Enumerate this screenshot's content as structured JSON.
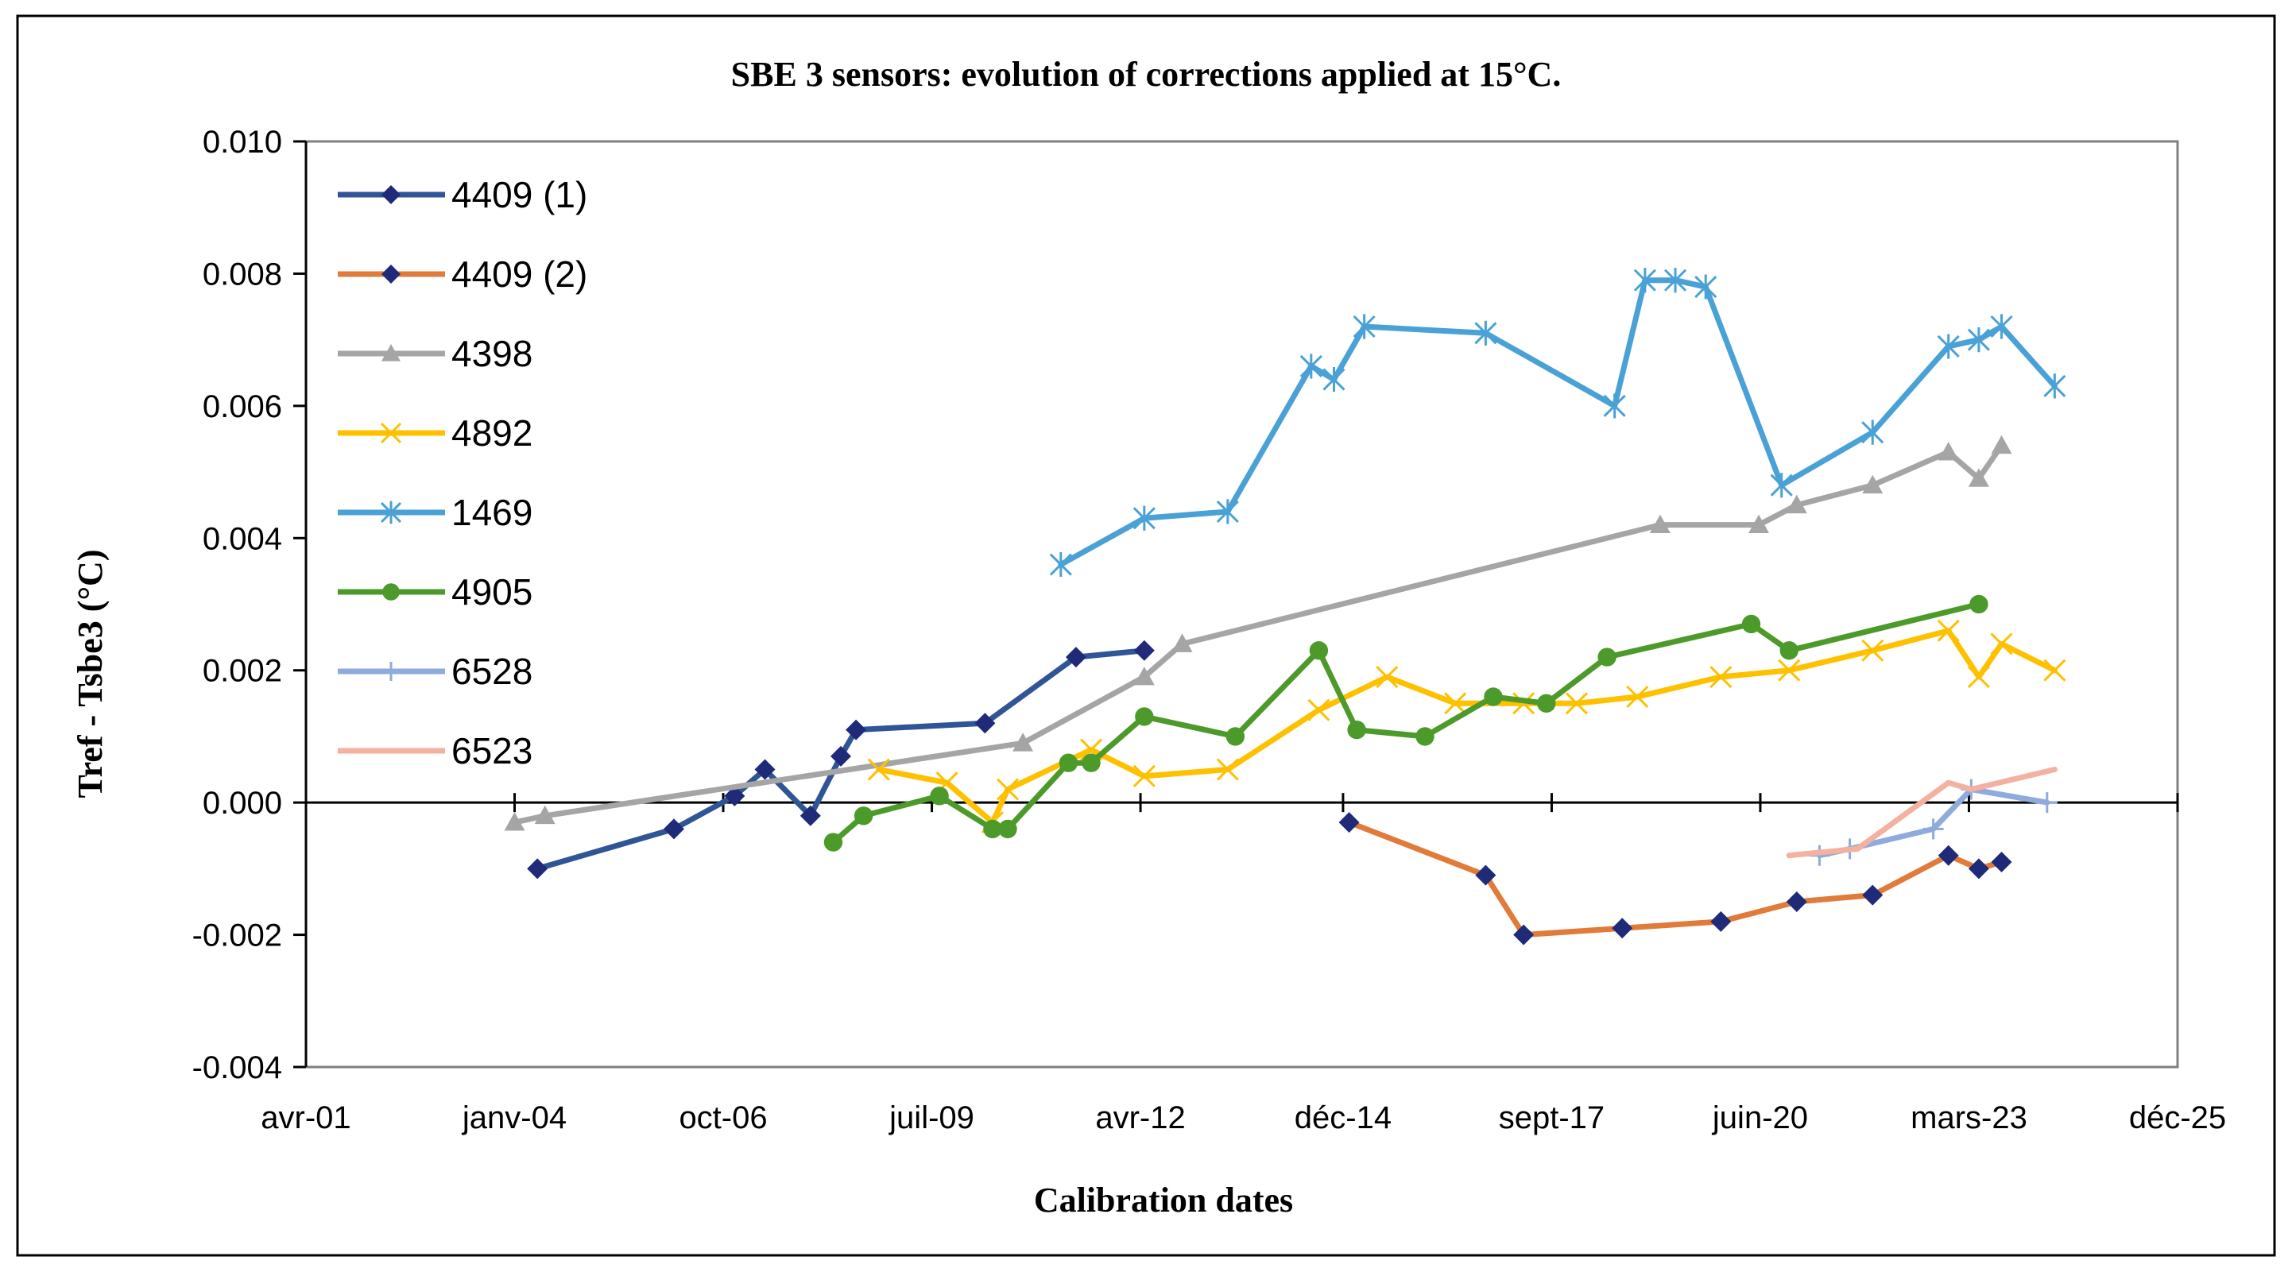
{
  "chart_data": {
    "type": "line",
    "title": "SBE 3 sensors: evolution  of corrections applied  at 15°C.",
    "xlabel": "Calibration  dates",
    "ylabel": "Tref - Tsbe3 (°C)",
    "xlim": [
      2001.25,
      2025.92
    ],
    "ylim": [
      -0.004,
      0.01
    ],
    "xticks": [
      {
        "label": "avr-01",
        "value": 2001.25
      },
      {
        "label": "janv-04",
        "value": 2004.0
      },
      {
        "label": "oct-06",
        "value": 2006.75
      },
      {
        "label": "juil-09",
        "value": 2009.5
      },
      {
        "label": "avr-12",
        "value": 2012.25
      },
      {
        "label": "déc-14",
        "value": 2014.92
      },
      {
        "label": "sept-17",
        "value": 2017.67
      },
      {
        "label": "juin-20",
        "value": 2020.42
      },
      {
        "label": "mars-23",
        "value": 2023.17
      },
      {
        "label": "déc-25",
        "value": 2025.92
      }
    ],
    "yticks": [
      {
        "label": "-0.004",
        "value": -0.004
      },
      {
        "label": "-0.002",
        "value": -0.002
      },
      {
        "label": "0.000",
        "value": 0.0
      },
      {
        "label": "0.002",
        "value": 0.002
      },
      {
        "label": "0.004",
        "value": 0.004
      },
      {
        "label": "0.006",
        "value": 0.006
      },
      {
        "label": "0.008",
        "value": 0.008
      },
      {
        "label": "0.010",
        "value": 0.01
      }
    ],
    "legend_position": "top-left inside",
    "series": [
      {
        "name": "4409 (1)",
        "color": "#2f5597",
        "marker": "diamond",
        "marker_color": "#1f2a78",
        "x": [
          2004.3,
          2006.1,
          2006.9,
          2007.3,
          2007.9,
          2008.3,
          2008.5,
          2010.2,
          2011.4,
          2012.3
        ],
        "y": [
          -0.001,
          -0.0004,
          0.0001,
          0.0005,
          -0.0002,
          0.0007,
          0.0011,
          0.0012,
          0.0022,
          0.0023
        ]
      },
      {
        "name": "4409 (2)",
        "color": "#e07b39",
        "marker": "diamond",
        "marker_color": "#1f2a78",
        "x": [
          2015.0,
          2016.8,
          2017.3,
          2018.6,
          2019.9,
          2020.9,
          2021.9,
          2022.9,
          2023.3,
          2023.6
        ],
        "y": [
          -0.0003,
          -0.0011,
          -0.002,
          -0.0019,
          -0.0018,
          -0.0015,
          -0.0014,
          -0.0008,
          -0.001,
          -0.0009
        ]
      },
      {
        "name": "4398",
        "color": "#a5a5a5",
        "marker": "triangle",
        "marker_color": "#a5a5a5",
        "x": [
          2004.0,
          2004.4,
          2010.7,
          2012.3,
          2012.8,
          2019.1,
          2020.4,
          2020.9,
          2021.9,
          2022.9,
          2023.3,
          2023.6
        ],
        "y": [
          -0.0003,
          -0.0002,
          0.0009,
          0.0019,
          0.0024,
          0.0042,
          0.0042,
          0.0045,
          0.0048,
          0.0053,
          0.0049,
          0.0054
        ]
      },
      {
        "name": "4892",
        "color": "#ffc000",
        "marker": "x",
        "marker_color": "#ffc000",
        "x": [
          2008.8,
          2009.7,
          2010.3,
          2010.5,
          2011.6,
          2012.3,
          2013.4,
          2014.6,
          2015.5,
          2016.4,
          2017.3,
          2018.0,
          2018.8,
          2019.9,
          2020.8,
          2021.9,
          2022.9,
          2023.3,
          2023.6,
          2024.3
        ],
        "y": [
          0.0005,
          0.0003,
          -0.0003,
          0.0002,
          0.0008,
          0.0004,
          0.0005,
          0.0014,
          0.0019,
          0.0015,
          0.0015,
          0.0015,
          0.0016,
          0.0019,
          0.002,
          0.0023,
          0.0026,
          0.0019,
          0.0024,
          0.002
        ]
      },
      {
        "name": "1469",
        "color": "#4aa1d6",
        "marker": "asterisk",
        "marker_color": "#4aa1d6",
        "x": [
          2011.2,
          2012.3,
          2013.4,
          2014.5,
          2014.8,
          2015.2,
          2016.8,
          2018.5,
          2018.9,
          2019.3,
          2019.7,
          2020.7,
          2021.9,
          2022.9,
          2023.3,
          2023.6,
          2024.3
        ],
        "y": [
          0.0036,
          0.0043,
          0.0044,
          0.0066,
          0.0064,
          0.0072,
          0.0071,
          0.006,
          0.0079,
          0.0079,
          0.0078,
          0.0048,
          0.0056,
          0.0069,
          0.007,
          0.0072,
          0.0063
        ]
      },
      {
        "name": "4905",
        "color": "#4c9a2a",
        "marker": "circle",
        "marker_color": "#4c9a2a",
        "x": [
          2008.2,
          2008.6,
          2009.6,
          2010.3,
          2010.5,
          2011.3,
          2011.6,
          2012.3,
          2013.5,
          2014.6,
          2015.1,
          2016.0,
          2016.9,
          2017.6,
          2018.4,
          2020.3,
          2020.8,
          2023.3
        ],
        "y": [
          -0.0006,
          -0.0002,
          0.0001,
          -0.0004,
          -0.0004,
          0.0006,
          0.0006,
          0.0013,
          0.001,
          0.0023,
          0.0011,
          0.001,
          0.0016,
          0.0015,
          0.0022,
          0.0027,
          0.0023,
          0.003
        ]
      },
      {
        "name": "6528",
        "color": "#8faadc",
        "marker": "plus",
        "marker_color": "#8faadc",
        "x": [
          2021.2,
          2021.6,
          2022.7,
          2023.2,
          2024.2
        ],
        "y": [
          -0.0008,
          -0.0007,
          -0.0004,
          0.0002,
          0.0
        ]
      },
      {
        "name": "6523",
        "color": "#f4b0a0",
        "marker": "none",
        "marker_color": "#f4b0a0",
        "x": [
          2020.8,
          2021.7,
          2022.9,
          2023.2,
          2024.3
        ],
        "y": [
          -0.0008,
          -0.0007,
          0.0003,
          0.0002,
          0.0005
        ]
      }
    ]
  }
}
